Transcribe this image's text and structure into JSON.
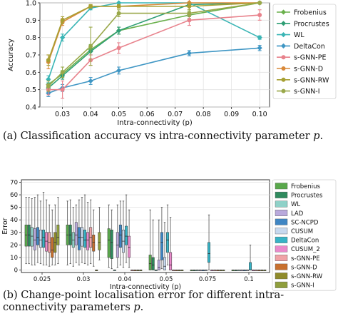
{
  "captions": {
    "a_label": "(a)",
    "a_text": "Classification accuracy vs intra-connectivity parameter",
    "a_var": "p",
    "a_end": ".",
    "b_label": "(b)",
    "b_text": "Change-point localisation error for different intra-connectivity parameters",
    "b_var": "p",
    "b_end": "."
  },
  "chart_data": [
    {
      "type": "line",
      "title": "",
      "xlabel": "Intra-connectivity (p)",
      "ylabel": "Accuracy",
      "xlim": [
        0.022,
        0.1035
      ],
      "ylim": [
        0.4,
        1.0
      ],
      "xticks": [
        0.03,
        0.04,
        0.05,
        0.06,
        0.07,
        0.08,
        0.09,
        0.1
      ],
      "xtick_labels": [
        "0.03",
        "0.04",
        "0.05",
        "0.06",
        "0.07",
        "0.08",
        "0.09",
        "0.10"
      ],
      "yticks": [
        0.4,
        0.5,
        0.6,
        0.7,
        0.8,
        0.9,
        1.0
      ],
      "ytick_labels": [
        "0.4",
        "0.5",
        "0.6",
        "0.7",
        "0.8",
        "0.9",
        "1.0"
      ],
      "grid": true,
      "legend_position": "right",
      "x": [
        0.025,
        0.03,
        0.04,
        0.05,
        0.075,
        0.1
      ],
      "series": [
        {
          "name": "Frobenius",
          "color": "#6ab04c",
          "marker": "diamond",
          "values": [
            0.53,
            0.59,
            0.73,
            0.84,
            0.93,
            1.0
          ],
          "err": [
            0.02,
            0.02,
            0.03,
            0.02,
            0.02,
            0.0
          ]
        },
        {
          "name": "Procrustes",
          "color": "#2e9e74",
          "marker": "diamond",
          "values": [
            0.51,
            0.58,
            0.72,
            0.84,
            0.99,
            1.0
          ],
          "err": [
            0.02,
            0.02,
            0.02,
            0.02,
            0.01,
            0.0
          ]
        },
        {
          "name": "WL",
          "color": "#3ab5b5",
          "marker": "diamond",
          "values": [
            0.56,
            0.8,
            0.97,
            1.0,
            1.0,
            0.8
          ],
          "err": [
            0.02,
            0.02,
            0.01,
            0.0,
            0.0,
            0.01
          ]
        },
        {
          "name": "DeltaCon",
          "color": "#3f96c4",
          "marker": "diamond",
          "values": [
            0.48,
            0.51,
            0.55,
            0.61,
            0.71,
            0.74
          ],
          "err": [
            0.02,
            0.02,
            0.02,
            0.02,
            0.015,
            0.015
          ]
        },
        {
          "name": "s-GNN-PE",
          "color": "#e8828c",
          "marker": "circle",
          "values": [
            0.5,
            0.5,
            0.67,
            0.74,
            0.9,
            0.93
          ],
          "err": [
            0.03,
            0.05,
            0.03,
            0.03,
            0.03,
            0.03
          ]
        },
        {
          "name": "s-GNN-D",
          "color": "#d9893a",
          "marker": "circle",
          "values": [
            0.66,
            0.89,
            0.98,
            0.98,
            1.0,
            1.0
          ],
          "err": [
            0.04,
            0.02,
            0.01,
            0.01,
            0.04,
            0.0
          ]
        },
        {
          "name": "s-GNN-RW",
          "color": "#a7a033",
          "marker": "circle",
          "values": [
            0.67,
            0.9,
            0.98,
            0.98,
            0.98,
            1.0
          ],
          "err": [
            0.03,
            0.02,
            0.01,
            0.01,
            0.02,
            0.0
          ]
        },
        {
          "name": "s-GNN-I",
          "color": "#9aa84a",
          "marker": "circle",
          "values": [
            0.52,
            0.6,
            0.75,
            0.94,
            0.94,
            1.0
          ],
          "err": [
            0.03,
            0.03,
            0.11,
            0.02,
            0.02,
            0.0
          ]
        }
      ]
    },
    {
      "type": "box",
      "title": "",
      "xlabel": "Intra-connectivity (p)",
      "ylabel": "Error",
      "ylim": [
        -2,
        72
      ],
      "yticks": [
        0,
        10,
        20,
        30,
        40,
        50,
        60,
        70
      ],
      "ytick_labels": [
        "0",
        "10",
        "20",
        "30",
        "40",
        "50",
        "60",
        "70"
      ],
      "categories": [
        "0.025",
        "0.03",
        "0.04",
        "0.05",
        "0.075",
        "0.1"
      ],
      "grid": true,
      "legend_position": "right",
      "series": [
        {
          "name": "Frobenius",
          "color": "#59a84b",
          "boxes": [
            [
              5,
              19,
              28,
              36,
              58
            ],
            [
              4,
              20,
              28,
              36,
              55
            ],
            [
              2,
              10,
              24,
              33,
              52
            ],
            [
              0,
              0,
              5,
              12,
              48
            ],
            [
              0,
              0,
              0,
              0,
              0
            ],
            [
              0,
              0,
              0,
              0,
              0
            ]
          ]
        },
        {
          "name": "Procrustes",
          "color": "#2f8b5e",
          "boxes": [
            [
              5,
              19,
              28,
              36,
              58
            ],
            [
              5,
              20,
              28,
              36,
              56
            ],
            [
              1,
              9,
              22,
              32,
              48
            ],
            [
              0,
              0,
              4,
              10,
              40
            ],
            [
              0,
              0,
              0,
              0,
              0
            ],
            [
              0,
              0,
              0,
              0,
              0
            ]
          ]
        },
        {
          "name": "WL",
          "color": "#8fd1c8",
          "boxes": [
            [
              4,
              19,
              27,
              34,
              57
            ],
            [
              3,
              18,
              24,
              30,
              50
            ],
            [
              0,
              0,
              0,
              0,
              0
            ],
            [
              0,
              0,
              0,
              0,
              0
            ],
            [
              0,
              0,
              0,
              0,
              0
            ],
            [
              0,
              0,
              0,
              0,
              0
            ]
          ]
        },
        {
          "name": "LAD",
          "color": "#b9a9dc",
          "boxes": [
            [
              4,
              16,
              24,
              33,
              58
            ],
            [
              6,
              20,
              28,
              38,
              52
            ],
            [
              2,
              10,
              20,
              30,
              52
            ],
            [
              0,
              0,
              2,
              8,
              40
            ],
            [
              0,
              0,
              0,
              0,
              0
            ],
            [
              0,
              0,
              0,
              0,
              0
            ]
          ]
        },
        {
          "name": "SC-NCPD",
          "color": "#3f86c4",
          "boxes": [
            [
              6,
              20,
              26,
              34,
              60
            ],
            [
              4,
              16,
              26,
              34,
              56
            ],
            [
              4,
              18,
              28,
              36,
              55
            ],
            [
              1,
              8,
              22,
              30,
              50
            ],
            [
              0,
              0,
              0,
              0,
              0
            ],
            [
              0,
              0,
              0,
              0,
              0
            ]
          ]
        },
        {
          "name": "CUSUM",
          "color": "#c7d9ef",
          "boxes": [
            [
              5,
              18,
              24,
              32,
              55
            ],
            [
              6,
              19,
              26,
              34,
              58
            ],
            [
              2,
              14,
              23,
              32,
              55
            ],
            [
              0,
              0,
              3,
              10,
              38
            ],
            [
              0,
              0,
              0,
              0,
              0
            ],
            [
              0,
              0,
              0,
              0,
              0
            ]
          ]
        },
        {
          "name": "DeltaCon",
          "color": "#36b3c6",
          "boxes": [
            [
              4,
              18,
              26,
              32,
              62
            ],
            [
              5,
              18,
              24,
              32,
              60
            ],
            [
              6,
              20,
              27,
              35,
              60
            ],
            [
              4,
              14,
              24,
              30,
              52
            ],
            [
              0,
              6,
              13,
              22,
              44
            ],
            [
              0,
              0,
              0,
              6,
              20
            ]
          ]
        },
        {
          "name": "CUSUM_2",
          "color": "#e98acb",
          "boxes": [
            [
              4,
              15,
              23,
              30,
              56
            ],
            [
              4,
              16,
              24,
              30,
              54
            ],
            [
              2,
              10,
              18,
              27,
              48
            ],
            [
              0,
              0,
              4,
              14,
              42
            ],
            [
              0,
              0,
              0,
              0,
              0
            ],
            [
              0,
              0,
              0,
              0,
              0
            ]
          ]
        },
        {
          "name": "s-GNN-PE",
          "color": "#f0a2a6",
          "boxes": [
            [
              3,
              14,
              22,
              30,
              52
            ],
            [
              5,
              18,
              26,
              34,
              56
            ],
            [
              0,
              0,
              0,
              0,
              0
            ],
            [
              0,
              0,
              0,
              0,
              0
            ],
            [
              0,
              0,
              0,
              0,
              0
            ],
            [
              0,
              0,
              0,
              0,
              0
            ]
          ]
        },
        {
          "name": "s-GNN-D",
          "color": "#c8702e",
          "boxes": [
            [
              4,
              10,
              16,
              26,
              48
            ],
            [
              3,
              15,
              22,
              28,
              48
            ],
            [
              0,
              0,
              0,
              0,
              0
            ],
            [
              0,
              0,
              0,
              0,
              0
            ],
            [
              0,
              0,
              0,
              0,
              0
            ],
            [
              0,
              0,
              0,
              0,
              0
            ]
          ]
        },
        {
          "name": "s-GNN-RW",
          "color": "#8f8b2b",
          "boxes": [
            [
              4,
              14,
              22,
              30,
              52
            ],
            [
              0,
              0,
              0,
              0,
              0
            ],
            [
              0,
              0,
              0,
              0,
              0
            ],
            [
              0,
              0,
              0,
              0,
              0
            ],
            [
              0,
              0,
              0,
              0,
              0
            ],
            [
              0,
              0,
              0,
              0,
              0
            ]
          ]
        },
        {
          "name": "s-GNN-I",
          "color": "#8f9e3c",
          "boxes": [
            [
              5,
              20,
              26,
              36,
              58
            ],
            [
              8,
              16,
              22,
              30,
              50
            ],
            [
              0,
              0,
              0,
              0,
              0
            ],
            [
              0,
              0,
              0,
              0,
              0
            ],
            [
              0,
              0,
              0,
              0,
              0
            ],
            [
              0,
              0,
              0,
              0,
              0
            ]
          ]
        }
      ]
    }
  ]
}
